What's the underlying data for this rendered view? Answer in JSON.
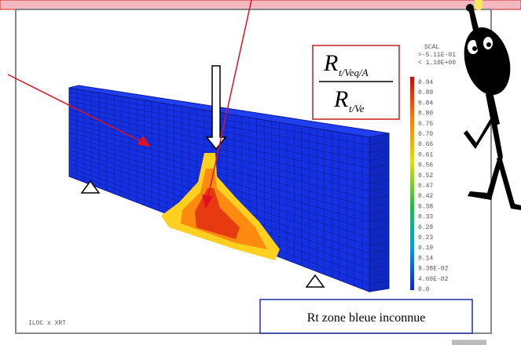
{
  "scale": {
    "title": "SCAL",
    "max_label": ">-5.11E-01",
    "min_label": "< 1.10E+00",
    "levels": [
      "0.94",
      "0.89",
      "0.84",
      "0.80",
      "0.75",
      "0.70",
      "0.66",
      "0.61",
      "0.56",
      "0.52",
      "0.47",
      "0.42",
      "0.38",
      "0.33",
      "0.28",
      "0.23",
      "0.19",
      "0.14",
      "9.38E-02",
      "4.69E-02",
      "0.0"
    ]
  },
  "footer_label": "ILOC x XRT",
  "formula": {
    "numerator": {
      "symbol": "R",
      "subscript": "t/Veq/A"
    },
    "denominator": {
      "symbol": "R",
      "subscript": "t/Ve"
    }
  },
  "caption": "Rt zone bleue inconnue"
}
